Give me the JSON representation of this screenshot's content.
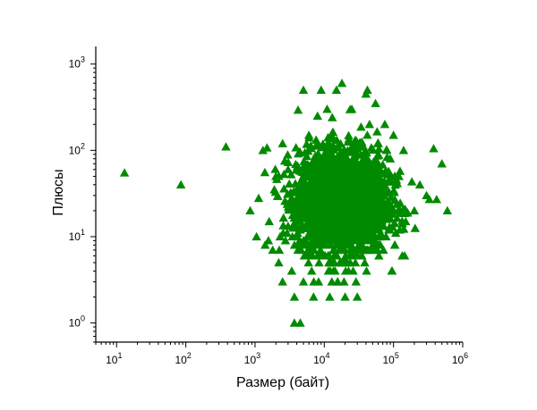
{
  "chart_data": {
    "type": "scatter",
    "title": "",
    "xlabel": "Размер (байт)",
    "ylabel": "Плюсы",
    "xscale": "log",
    "yscale": "log",
    "xlim": [
      5,
      1000000
    ],
    "ylim": [
      0.6,
      1600
    ],
    "grid": false,
    "marker": "triangle-up",
    "color": "#008a00",
    "x_ticks": [
      {
        "base": "10",
        "exp": "1",
        "value": 10
      },
      {
        "base": "10",
        "exp": "2",
        "value": 100
      },
      {
        "base": "10",
        "exp": "3",
        "value": 1000
      },
      {
        "base": "10",
        "exp": "4",
        "value": 10000
      },
      {
        "base": "10",
        "exp": "5",
        "value": 100000
      },
      {
        "base": "10",
        "exp": "6",
        "value": 1000000
      }
    ],
    "y_ticks": [
      {
        "base": "10",
        "exp": "0",
        "value": 1
      },
      {
        "base": "10",
        "exp": "1",
        "value": 10
      },
      {
        "base": "10",
        "exp": "2",
        "value": 100
      },
      {
        "base": "10",
        "exp": "3",
        "value": 1000
      }
    ],
    "points": [
      [
        13,
        55
      ],
      [
        85,
        40
      ],
      [
        380,
        110
      ],
      [
        1300,
        100
      ],
      [
        850,
        20
      ],
      [
        1050,
        10
      ],
      [
        1400,
        8
      ],
      [
        3700,
        1
      ],
      [
        4500,
        1
      ],
      [
        3700,
        2
      ],
      [
        5000,
        3
      ],
      [
        7000,
        2
      ],
      [
        12000,
        2
      ],
      [
        20000,
        2
      ],
      [
        30000,
        2
      ],
      [
        5000,
        500
      ],
      [
        9000,
        500
      ],
      [
        15000,
        500
      ],
      [
        18000,
        600
      ],
      [
        40000,
        450
      ],
      [
        42000,
        500
      ],
      [
        55000,
        350
      ],
      [
        75000,
        200
      ],
      [
        100000,
        150
      ],
      [
        140000,
        100
      ],
      [
        380000,
        105
      ],
      [
        500000,
        70
      ],
      [
        300000,
        30
      ],
      [
        330000,
        27
      ],
      [
        420000,
        27
      ],
      [
        600000,
        20
      ],
      [
        2500,
        3
      ],
      [
        2200,
        5
      ],
      [
        1800,
        7
      ],
      [
        150000,
        15
      ],
      [
        200000,
        20
      ],
      [
        240000,
        40
      ],
      [
        120000,
        50
      ],
      [
        90000,
        80
      ],
      [
        60000,
        120
      ],
      [
        45000,
        200
      ],
      [
        11000,
        300
      ],
      [
        25000,
        300
      ],
      [
        8000,
        250
      ],
      [
        3000,
        60
      ],
      [
        2000,
        50
      ],
      [
        2500,
        120
      ],
      [
        6000,
        150
      ],
      [
        1600,
        15
      ],
      [
        1900,
        35
      ]
    ]
  }
}
